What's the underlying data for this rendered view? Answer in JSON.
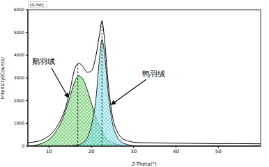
{
  "chart_data": {
    "type": "line",
    "title": "[G.txt]",
    "x_label": "2-Theta(°)",
    "y_label": "Intensity(Counts)",
    "x": [
      5,
      6,
      7,
      8,
      9,
      10,
      11,
      12,
      13,
      14,
      15,
      16,
      17,
      18,
      19,
      20,
      21,
      22,
      22.5,
      23,
      24,
      25,
      26,
      27,
      28,
      29,
      30,
      32,
      35,
      40,
      45,
      50,
      55,
      60
    ],
    "series": [
      {
        "type": "line",
        "color": "#000000",
        "values": [
          150,
          170,
          200,
          250,
          330,
          450,
          630,
          900,
          1250,
          1750,
          2500,
          3350,
          3650,
          3500,
          3250,
          3300,
          3900,
          5000,
          5520,
          4900,
          2730,
          1300,
          680,
          390,
          270,
          210,
          170,
          150,
          140,
          130,
          120,
          110,
          110,
          100
        ]
      },
      {
        "name": "鹅羽绒",
        "type": "area",
        "color": "#2db82d",
        "center": 16.8,
        "values": [
          0,
          20,
          50,
          100,
          180,
          300,
          480,
          750,
          1100,
          1600,
          2200,
          2800,
          3100,
          2950,
          2500,
          1900,
          1300,
          850,
          670,
          500,
          280,
          150,
          80,
          40,
          20,
          10,
          0,
          0,
          0,
          0,
          0,
          0,
          0,
          0
        ]
      },
      {
        "name": "鸭羽绒",
        "type": "area",
        "color": "#3ec8d8",
        "center": 22.5,
        "values": [
          0,
          0,
          0,
          0,
          0,
          0,
          0,
          0,
          0,
          0,
          10,
          30,
          60,
          150,
          350,
          900,
          1950,
          4000,
          4700,
          4250,
          2300,
          1000,
          450,
          200,
          100,
          50,
          20,
          0,
          0,
          0,
          0,
          0,
          0,
          0
        ]
      }
    ],
    "xlim": [
      5,
      60
    ],
    "xticks": [
      10,
      20,
      30,
      40,
      50
    ],
    "ylim": [
      0,
      6000
    ],
    "yticks": [
      0,
      1000,
      2000,
      3000,
      4000,
      5000,
      6000
    ],
    "grid": false
  }
}
